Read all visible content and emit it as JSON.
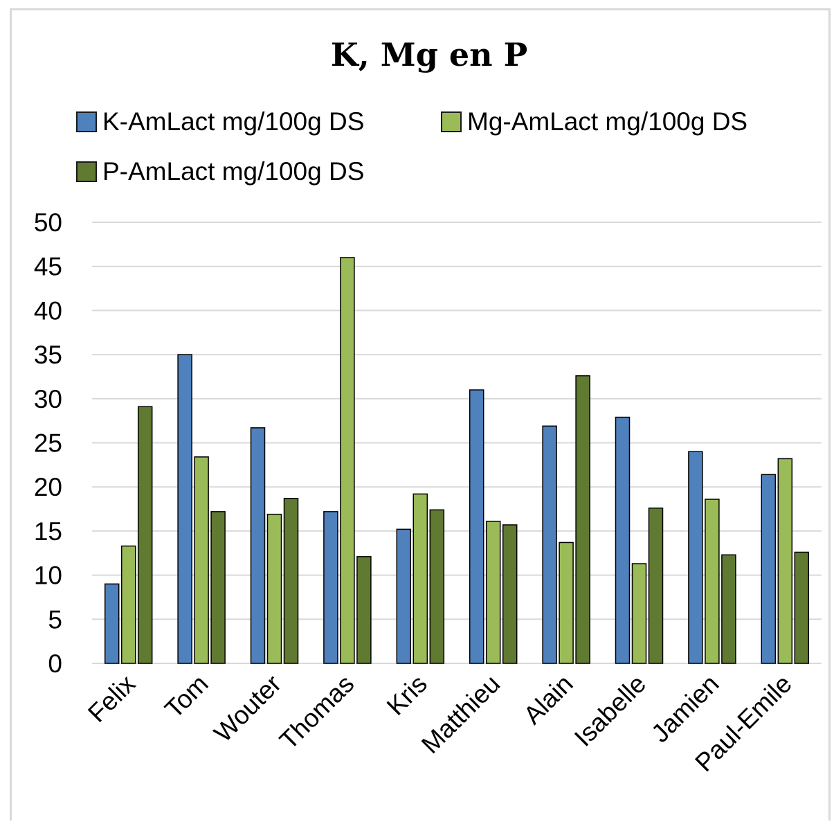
{
  "chart_data": {
    "type": "bar",
    "title": "K, Mg en P",
    "categories": [
      "Felix",
      "Tom",
      "Wouter",
      "Thomas",
      "Kris",
      "Matthieu",
      "Alain",
      "Isabelle",
      "Jamien",
      "Paul-Emile"
    ],
    "series": [
      {
        "name": "K-AmLact mg/100g DS",
        "color": "#4f81bd",
        "values": [
          9,
          35,
          26.7,
          17.2,
          15.2,
          31,
          26.9,
          27.9,
          24,
          21.4
        ]
      },
      {
        "name": "Mg-AmLact mg/100g DS",
        "color": "#9bbb59",
        "values": [
          13.3,
          23.4,
          16.9,
          46,
          19.2,
          16.1,
          13.7,
          11.3,
          18.6,
          23.2
        ]
      },
      {
        "name": "P-AmLact mg/100g DS",
        "color": "#607a32",
        "values": [
          29.1,
          17.2,
          18.7,
          12.1,
          17.4,
          15.7,
          32.6,
          17.6,
          12.3,
          12.6
        ]
      }
    ],
    "ylim": [
      0,
      50
    ],
    "yticks": [
      0,
      5,
      10,
      15,
      20,
      25,
      30,
      35,
      40,
      45,
      50
    ],
    "xlabel": "",
    "ylabel": "",
    "grid": true,
    "legend_position": "top"
  }
}
